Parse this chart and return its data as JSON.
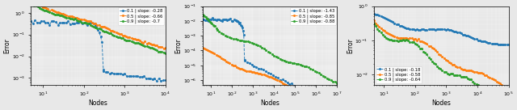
{
  "plots": [
    {
      "ylabel": "Error",
      "xlabel": "Nodes",
      "legend": [
        {
          "label": "0.1 | slope: -0.28",
          "color": "#1f77b4"
        },
        {
          "label": "0.5 | slope: -0.66",
          "color": "#ff7f0e"
        },
        {
          "label": "0.9 | slope: -0.7",
          "color": "#2ca02c"
        }
      ],
      "ylim": [
        0.0005,
        2.0
      ],
      "xlim": [
        5,
        10000
      ],
      "legend_loc": "upper right"
    },
    {
      "ylabel": "Error",
      "xlabel": "Nodes",
      "legend": [
        {
          "label": "0.1 | slope: -1.43",
          "color": "#1f77b4"
        },
        {
          "label": "0.5 | slope: -0.85",
          "color": "#ff7f0e"
        },
        {
          "label": "0.9 | slope: -0.88",
          "color": "#2ca02c"
        }
      ],
      "ylim": [
        5e-07,
        0.1
      ],
      "xlim": [
        4,
        10000000.0
      ],
      "legend_loc": "upper right"
    },
    {
      "ylabel": "Error",
      "xlabel": "Nodes",
      "legend": [
        {
          "label": "0.1 | slope: -0.18",
          "color": "#1f77b4"
        },
        {
          "label": "0.5 | slope: -0.58",
          "color": "#ff7f0e"
        },
        {
          "label": "0.9 | slope: -0.64",
          "color": "#2ca02c"
        }
      ],
      "ylim": [
        0.005,
        1.0
      ],
      "xlim": [
        5,
        100000.0
      ],
      "legend_loc": "lower left"
    }
  ],
  "background": "#e8e8e8",
  "colors": [
    "#1f77b4",
    "#ff7f0e",
    "#2ca02c"
  ]
}
